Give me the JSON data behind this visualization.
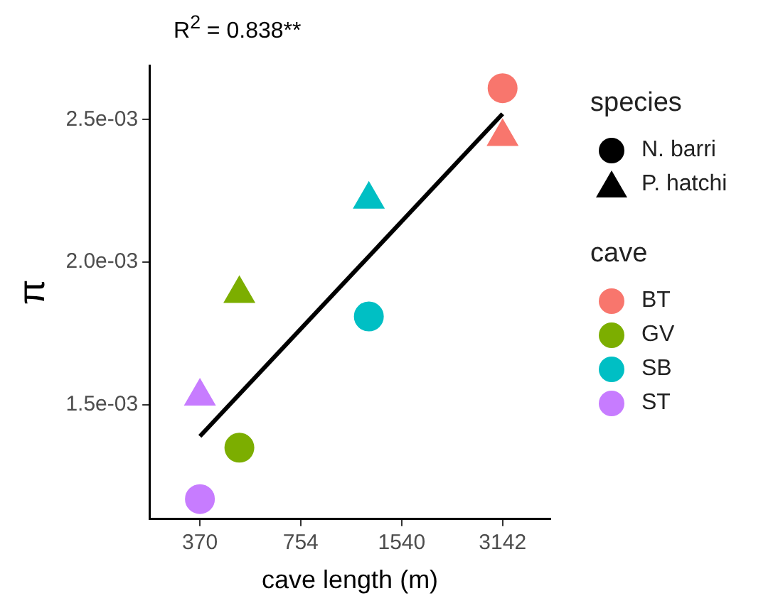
{
  "chart_data": {
    "type": "scatter",
    "title": "R$^{2}$ = 0.838**",
    "xlabel": "cave length (m)",
    "ylabel": "π",
    "log": "x",
    "xlim": [
      259,
      4406
    ],
    "xticks": [
      370,
      754,
      1540,
      3142
    ],
    "ylim": [
      0.0011,
      0.00269
    ],
    "yticks": [
      {
        "value": 0.0015,
        "label": "1.5e-03"
      },
      {
        "value": 0.002,
        "label": "2.0e-03"
      },
      {
        "value": 0.0025,
        "label": "2.5e-03"
      }
    ],
    "grid": false,
    "legend": "right",
    "legend_title": "cave",
    "annotations": [
      "species",
      "N. barri",
      "P. hatchi"
    ],
    "series": [
      {
        "name": "BT",
        "color": "#f8766d",
        "marker": "circle",
        "x": [
          3142
        ],
        "values": [
          0.00261
        ]
      },
      {
        "name": "GV",
        "color": "#7cae00",
        "marker": "circle",
        "x": [
          489
        ],
        "values": [
          0.00135
        ]
      },
      {
        "name": "SB",
        "color": "#00bfc4",
        "marker": "circle",
        "x": [
          1221
        ],
        "values": [
          0.00181
        ]
      },
      {
        "name": "ST",
        "color": "#c77cff",
        "marker": "circle",
        "x": [
          370
        ],
        "values": [
          0.00117
        ]
      },
      {
        "color": "#f8766d",
        "marker": "triangle",
        "x": [
          3142
        ],
        "values": [
          0.00244
        ]
      },
      {
        "color": "#7cae00",
        "marker": "triangle",
        "x": [
          489
        ],
        "values": [
          0.00189
        ]
      },
      {
        "color": "#00bfc4",
        "marker": "triangle",
        "x": [
          1221
        ],
        "values": [
          0.00222
        ]
      },
      {
        "color": "#c77cff",
        "marker": "triangle",
        "x": [
          370
        ],
        "values": [
          0.00153
        ]
      },
      {
        "type": "line",
        "color": "#000000",
        "marker": "none",
        "x": [
          370,
          3142
        ],
        "values": [
          0.00139,
          0.00252
        ]
      }
    ]
  }
}
